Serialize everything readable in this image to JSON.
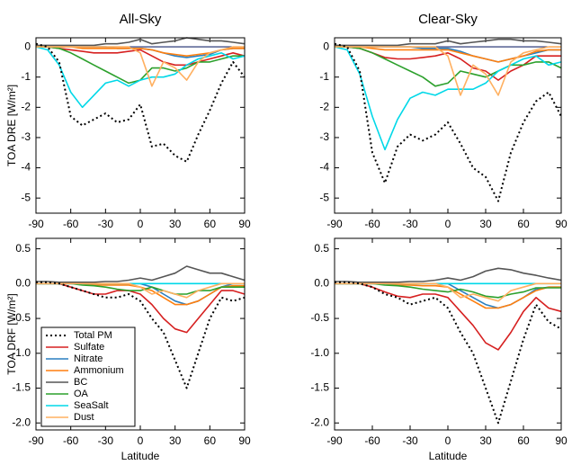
{
  "chart_data": [
    {
      "type": "line",
      "title": "All-Sky",
      "ylabel": "TOA DRE [W/m²]",
      "x": [
        -90,
        -80,
        -70,
        -60,
        -50,
        -40,
        -30,
        -20,
        -10,
        0,
        10,
        20,
        30,
        40,
        50,
        60,
        70,
        80,
        90
      ],
      "xlim": [
        -90,
        90
      ],
      "xticks": [
        -90,
        -60,
        -30,
        0,
        30,
        60,
        90
      ],
      "ylim": [
        -5.5,
        0.3
      ],
      "yticks": [
        0,
        -1,
        -2,
        -3,
        -4,
        -5
      ],
      "series": [
        {
          "color": "#000000",
          "dash": true,
          "values": [
            0.1,
            0,
            -0.5,
            -2.3,
            -2.6,
            -2.4,
            -2.2,
            -2.5,
            -2.4,
            -1.9,
            -3.3,
            -3.2,
            -3.6,
            -3.8,
            -2.9,
            -2.1,
            -1.2,
            -0.5,
            -1.0
          ]
        },
        {
          "color": "#d62020",
          "values": [
            0,
            0,
            -0.05,
            -0.1,
            -0.15,
            -0.2,
            -0.2,
            -0.2,
            -0.15,
            -0.1,
            -0.3,
            -0.5,
            -0.6,
            -0.6,
            -0.5,
            -0.4,
            -0.3,
            -0.2,
            -0.3
          ]
        },
        {
          "color": "#2a7fc0",
          "values": [
            0,
            0,
            0,
            0,
            0,
            0,
            0,
            -0.05,
            -0.05,
            -0.05,
            -0.1,
            -0.2,
            -0.3,
            -0.35,
            -0.3,
            -0.25,
            -0.1,
            -0.05,
            -0.05
          ]
        },
        {
          "color": "#ff7f0e",
          "values": [
            0,
            0,
            0,
            0,
            -0.05,
            -0.05,
            -0.05,
            -0.05,
            -0.05,
            -0.05,
            -0.1,
            -0.2,
            -0.25,
            -0.3,
            -0.25,
            -0.2,
            -0.1,
            -0.05,
            -0.05
          ]
        },
        {
          "color": "#555555",
          "values": [
            0.05,
            0.05,
            0.05,
            0.05,
            0.05,
            0.05,
            0.1,
            0.1,
            0.15,
            0.25,
            0.1,
            0.15,
            0.2,
            0.3,
            0.25,
            0.2,
            0.2,
            0.15,
            0.1
          ]
        },
        {
          "color": "#2ca02c",
          "values": [
            0,
            0,
            -0.05,
            -0.2,
            -0.4,
            -0.6,
            -0.8,
            -1.0,
            -1.2,
            -1.1,
            -0.7,
            -0.7,
            -0.8,
            -0.7,
            -0.5,
            -0.5,
            -0.4,
            -0.3,
            -0.3
          ]
        },
        {
          "color": "#00d8e8",
          "values": [
            0,
            -0.1,
            -0.6,
            -1.5,
            -2.0,
            -1.6,
            -1.2,
            -1.1,
            -1.3,
            -1.1,
            -1.0,
            -1.0,
            -0.9,
            -0.6,
            -0.4,
            -0.3,
            -0.2,
            -0.4,
            -0.3
          ]
        },
        {
          "color": "#ffb060",
          "values": [
            0,
            0,
            0,
            0,
            0,
            0,
            0,
            0,
            0,
            -0.2,
            -1.3,
            -0.5,
            -0.7,
            -1.1,
            -0.5,
            -0.2,
            -0.1,
            0,
            0
          ]
        }
      ]
    },
    {
      "type": "line",
      "title": "Clear-Sky",
      "x": [
        -90,
        -80,
        -70,
        -60,
        -50,
        -40,
        -30,
        -20,
        -10,
        0,
        10,
        20,
        30,
        40,
        50,
        60,
        70,
        80,
        90
      ],
      "xlim": [
        -90,
        90
      ],
      "xticks": [
        -90,
        -60,
        -30,
        0,
        30,
        60,
        90
      ],
      "ylim": [
        -5.5,
        0.3
      ],
      "yticks": [
        0,
        -1,
        -2,
        -3,
        -4,
        -5
      ],
      "series": [
        {
          "color": "#000000",
          "dash": true,
          "values": [
            0.1,
            0,
            -0.8,
            -3.5,
            -4.5,
            -3.3,
            -2.9,
            -3.1,
            -2.9,
            -2.5,
            -3.2,
            -4.0,
            -4.3,
            -5.1,
            -3.5,
            -2.5,
            -1.8,
            -1.5,
            -2.3
          ]
        },
        {
          "color": "#d62020",
          "values": [
            0,
            0,
            -0.05,
            -0.2,
            -0.35,
            -0.4,
            -0.4,
            -0.35,
            -0.3,
            -0.2,
            -0.4,
            -0.7,
            -0.8,
            -1.1,
            -0.8,
            -0.6,
            -0.3,
            -0.3,
            -0.3
          ]
        },
        {
          "color": "#2a7fc0",
          "values": [
            0,
            0,
            0,
            0,
            0,
            0,
            0,
            -0.05,
            -0.05,
            -0.05,
            -0.15,
            -0.3,
            -0.4,
            -0.5,
            -0.4,
            -0.3,
            -0.2,
            -0.1,
            -0.1
          ]
        },
        {
          "color": "#ff7f0e",
          "values": [
            0,
            0,
            0,
            -0.05,
            -0.1,
            -0.1,
            -0.1,
            -0.1,
            -0.1,
            -0.1,
            -0.2,
            -0.3,
            -0.4,
            -0.5,
            -0.4,
            -0.3,
            -0.15,
            -0.1,
            -0.1
          ]
        },
        {
          "color": "#555555",
          "values": [
            0.05,
            0.05,
            0.05,
            0.05,
            0.05,
            0.05,
            0.1,
            0.1,
            0.1,
            0.2,
            0.1,
            0.15,
            0.2,
            0.25,
            0.25,
            0.2,
            0.2,
            0.15,
            0.1
          ]
        },
        {
          "color": "#2ca02c",
          "values": [
            0,
            0,
            -0.05,
            -0.2,
            -0.4,
            -0.6,
            -0.8,
            -1.0,
            -1.3,
            -1.2,
            -0.8,
            -0.9,
            -1.0,
            -0.8,
            -0.6,
            -0.6,
            -0.5,
            -0.5,
            -0.7
          ]
        },
        {
          "color": "#00d8e8",
          "values": [
            0,
            -0.1,
            -0.9,
            -2.3,
            -3.4,
            -2.4,
            -1.7,
            -1.5,
            -1.6,
            -1.4,
            -1.4,
            -1.4,
            -1.2,
            -0.8,
            -0.6,
            -0.4,
            -0.3,
            -0.6,
            -0.5
          ]
        },
        {
          "color": "#ffb060",
          "values": [
            0,
            0,
            0,
            0,
            0,
            0,
            0,
            0,
            0,
            -0.3,
            -1.6,
            -0.6,
            -0.9,
            -1.6,
            -0.5,
            -0.2,
            -0.1,
            0,
            0
          ]
        }
      ]
    },
    {
      "type": "line",
      "ylabel": "TOA DRF [W/m²]",
      "xlabel": "Latitude",
      "legend": "lower left",
      "x": [
        -90,
        -80,
        -70,
        -60,
        -50,
        -40,
        -30,
        -20,
        -10,
        0,
        10,
        20,
        30,
        40,
        50,
        60,
        70,
        80,
        90
      ],
      "xlim": [
        -90,
        90
      ],
      "xticks": [
        -90,
        -60,
        -30,
        0,
        30,
        60,
        90
      ],
      "ylim": [
        -2.1,
        0.65
      ],
      "yticks": [
        0.5,
        {
          "value": 0,
          "label": "0.0"
        },
        -0.5,
        {
          "value": -1,
          "label": "-1.0"
        },
        -1.5,
        {
          "value": -2,
          "label": "-2.0"
        }
      ],
      "series": [
        {
          "name": "Total PM",
          "color": "#000000",
          "dash": true,
          "values": [
            0.02,
            0.02,
            0,
            -0.05,
            -0.1,
            -0.15,
            -0.2,
            -0.2,
            -0.15,
            -0.25,
            -0.5,
            -0.7,
            -1.1,
            -1.5,
            -1.0,
            -0.5,
            -0.2,
            -0.25,
            -0.2
          ]
        },
        {
          "name": "Sulfate",
          "color": "#d62020",
          "values": [
            0,
            0,
            0,
            -0.05,
            -0.1,
            -0.15,
            -0.15,
            -0.1,
            -0.1,
            -0.15,
            -0.3,
            -0.5,
            -0.65,
            -0.7,
            -0.5,
            -0.3,
            -0.1,
            -0.1,
            -0.15
          ]
        },
        {
          "name": "Nitrate",
          "color": "#2a7fc0",
          "values": [
            0,
            0,
            0,
            0,
            0,
            0,
            0,
            0,
            0,
            0,
            -0.05,
            -0.15,
            -0.25,
            -0.3,
            -0.25,
            -0.15,
            -0.05,
            0,
            0
          ]
        },
        {
          "name": "Ammonium",
          "color": "#ff7f0e",
          "values": [
            0,
            0,
            0,
            0,
            0,
            -0.02,
            -0.02,
            -0.02,
            -0.02,
            -0.05,
            -0.1,
            -0.2,
            -0.3,
            -0.3,
            -0.25,
            -0.15,
            -0.05,
            -0.03,
            -0.03
          ]
        },
        {
          "name": "BC",
          "color": "#555555",
          "values": [
            0.03,
            0.03,
            0.02,
            0.02,
            0.02,
            0.02,
            0.03,
            0.03,
            0.05,
            0.08,
            0.05,
            0.1,
            0.15,
            0.25,
            0.2,
            0.15,
            0.15,
            0.1,
            0.05
          ]
        },
        {
          "name": "OA",
          "color": "#2ca02c",
          "values": [
            0,
            0,
            0,
            0,
            -0.02,
            -0.03,
            -0.05,
            -0.08,
            -0.1,
            -0.1,
            -0.05,
            -0.1,
            -0.15,
            -0.15,
            -0.1,
            -0.1,
            -0.05,
            -0.05,
            -0.05
          ]
        },
        {
          "name": "SeaSalt",
          "color": "#00d8e8",
          "values": [
            0,
            0,
            0,
            0,
            0,
            0,
            0,
            0,
            0,
            0,
            0,
            0,
            0,
            0,
            0,
            0,
            0,
            0,
            0
          ]
        },
        {
          "name": "Dust",
          "color": "#ffb060",
          "values": [
            0,
            0,
            0,
            0,
            0,
            0,
            0,
            0,
            0,
            -0.05,
            -0.15,
            -0.1,
            -0.15,
            -0.2,
            -0.1,
            -0.05,
            0,
            0,
            0
          ]
        }
      ]
    },
    {
      "type": "line",
      "xlabel": "Latitude",
      "x": [
        -90,
        -80,
        -70,
        -60,
        -50,
        -40,
        -30,
        -20,
        -10,
        0,
        10,
        20,
        30,
        40,
        50,
        60,
        70,
        80,
        90
      ],
      "xlim": [
        -90,
        90
      ],
      "xticks": [
        -90,
        -60,
        -30,
        0,
        30,
        60,
        90
      ],
      "ylim": [
        -2.1,
        0.65
      ],
      "yticks": [
        0.5,
        {
          "value": 0,
          "label": "0.0"
        },
        -0.5,
        {
          "value": -1,
          "label": "-1.0"
        },
        -1.5,
        {
          "value": -2,
          "label": "-2.0"
        }
      ],
      "series": [
        {
          "color": "#000000",
          "dash": true,
          "values": [
            0.02,
            0.02,
            0,
            -0.05,
            -0.15,
            -0.2,
            -0.3,
            -0.25,
            -0.2,
            -0.35,
            -0.7,
            -1.0,
            -1.5,
            -2.0,
            -1.4,
            -0.8,
            -0.3,
            -0.55,
            -0.65
          ]
        },
        {
          "color": "#d62020",
          "values": [
            0,
            0,
            0,
            -0.05,
            -0.12,
            -0.18,
            -0.2,
            -0.15,
            -0.15,
            -0.2,
            -0.4,
            -0.6,
            -0.85,
            -0.95,
            -0.7,
            -0.4,
            -0.2,
            -0.35,
            -0.4
          ]
        },
        {
          "color": "#2a7fc0",
          "values": [
            0,
            0,
            0,
            0,
            0,
            0,
            0,
            0,
            0,
            0,
            -0.1,
            -0.2,
            -0.3,
            -0.35,
            -0.3,
            -0.2,
            -0.08,
            -0.05,
            -0.05
          ]
        },
        {
          "color": "#ff7f0e",
          "values": [
            0,
            0,
            0,
            0,
            0,
            -0.02,
            -0.02,
            -0.03,
            -0.03,
            -0.05,
            -0.15,
            -0.25,
            -0.35,
            -0.35,
            -0.3,
            -0.2,
            -0.1,
            -0.05,
            -0.05
          ]
        },
        {
          "color": "#555555",
          "values": [
            0.03,
            0.03,
            0.02,
            0.02,
            0.02,
            0.02,
            0.03,
            0.03,
            0.05,
            0.08,
            0.05,
            0.1,
            0.18,
            0.22,
            0.2,
            0.15,
            0.12,
            0.08,
            0.05
          ]
        },
        {
          "color": "#2ca02c",
          "values": [
            0,
            0,
            0,
            0,
            -0.02,
            -0.03,
            -0.05,
            -0.08,
            -0.1,
            -0.12,
            -0.08,
            -0.12,
            -0.18,
            -0.2,
            -0.15,
            -0.12,
            -0.06,
            -0.06,
            -0.06
          ]
        },
        {
          "color": "#00d8e8",
          "values": [
            0,
            0,
            0,
            0,
            0,
            0,
            0,
            0,
            0,
            0,
            0,
            0,
            0,
            0,
            0,
            0,
            0,
            0,
            0
          ]
        },
        {
          "color": "#ffb060",
          "values": [
            0,
            0,
            0,
            0,
            0,
            0,
            0,
            0,
            0,
            -0.05,
            -0.2,
            -0.15,
            -0.2,
            -0.25,
            -0.1,
            -0.05,
            0,
            0,
            0
          ]
        }
      ]
    }
  ]
}
